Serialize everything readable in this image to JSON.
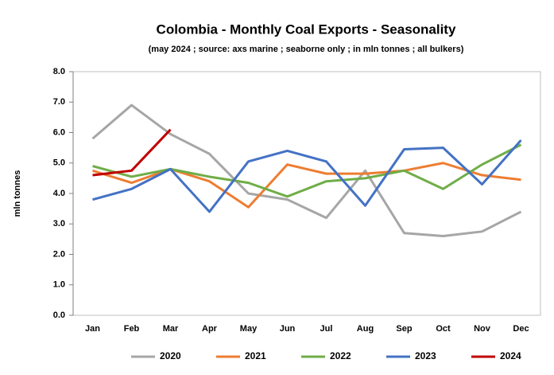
{
  "chart_data": {
    "type": "line",
    "title": "Colombia - Monthly Coal Exports - Seasonality",
    "subtitle": "(may 2024 ; source: axs marine ; seaborne only ; in mln tonnes ; all bulkers)",
    "y_label": "mln tonnes",
    "categories": [
      "Jan",
      "Feb",
      "Mar",
      "Apr",
      "May",
      "Jun",
      "Jul",
      "Aug",
      "Sep",
      "Oct",
      "Nov",
      "Dec"
    ],
    "series": [
      {
        "name": "2020",
        "color": "#a6a6a6",
        "values": [
          5.8,
          6.9,
          5.95,
          5.3,
          4.0,
          3.8,
          3.2,
          4.75,
          2.7,
          2.6,
          2.75,
          3.4
        ]
      },
      {
        "name": "2021",
        "color": "#ed7d31",
        "values": [
          4.75,
          4.35,
          4.8,
          4.4,
          3.55,
          4.95,
          4.65,
          4.65,
          4.75,
          5.0,
          4.6,
          4.45
        ]
      },
      {
        "name": "2022",
        "color": "#70ad47",
        "values": [
          4.9,
          4.55,
          4.8,
          4.55,
          4.35,
          3.9,
          4.4,
          4.5,
          4.75,
          4.15,
          4.95,
          5.6
        ]
      },
      {
        "name": "2023",
        "color": "#4472c4",
        "values": [
          3.8,
          4.15,
          4.8,
          3.4,
          5.05,
          5.4,
          5.05,
          3.6,
          5.45,
          5.5,
          4.3,
          5.75
        ]
      },
      {
        "name": "2024",
        "color": "#c00000",
        "values": [
          4.6,
          4.75,
          6.1,
          null,
          null,
          null,
          null,
          null,
          null,
          null,
          null,
          null
        ]
      }
    ],
    "ylim": [
      0,
      8
    ],
    "yticks": [
      {
        "value": 0,
        "label": "0.0"
      },
      {
        "value": 1,
        "label": "1.0"
      },
      {
        "value": 2,
        "label": "2.0"
      },
      {
        "value": 3,
        "label": "3.0"
      },
      {
        "value": 4,
        "label": "4.0"
      },
      {
        "value": 5,
        "label": "5.0"
      },
      {
        "value": 6,
        "label": "6.0"
      },
      {
        "value": 7,
        "label": "7.0"
      },
      {
        "value": 8,
        "label": "8.0"
      }
    ],
    "grid": false,
    "legend": "bottom"
  }
}
